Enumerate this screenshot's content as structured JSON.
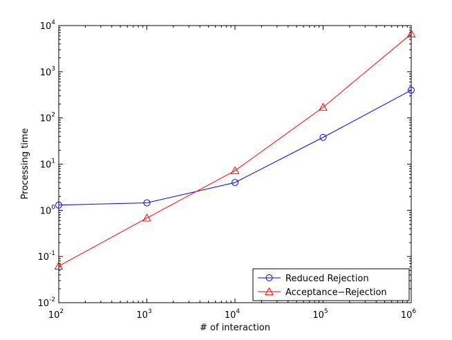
{
  "chart_data": {
    "type": "line",
    "xlabel": "# of interaction",
    "ylabel": "Processing time",
    "xscale": "log",
    "yscale": "log",
    "xlim": [
      100,
      1000000
    ],
    "ylim": [
      0.01,
      10000
    ],
    "x_ticks": [
      {
        "base": "10",
        "exp": "2",
        "value": 100
      },
      {
        "base": "10",
        "exp": "3",
        "value": 1000
      },
      {
        "base": "10",
        "exp": "4",
        "value": 10000
      },
      {
        "base": "10",
        "exp": "5",
        "value": 100000
      },
      {
        "base": "10",
        "exp": "6",
        "value": 1000000
      }
    ],
    "y_ticks": [
      {
        "base": "10",
        "exp": "-2",
        "value": 0.01
      },
      {
        "base": "10",
        "exp": "-1",
        "value": 0.1
      },
      {
        "base": "10",
        "exp": "0",
        "value": 1
      },
      {
        "base": "10",
        "exp": "1",
        "value": 10
      },
      {
        "base": "10",
        "exp": "2",
        "value": 100
      },
      {
        "base": "10",
        "exp": "3",
        "value": 1000
      },
      {
        "base": "10",
        "exp": "4",
        "value": 10000
      }
    ],
    "grid": false,
    "legend_position": "bottom-right",
    "x": [
      100,
      1000,
      10000,
      100000,
      1000000
    ],
    "series": [
      {
        "name": "Reduced Rejection",
        "marker": "circle",
        "color": "#0000ff",
        "values": [
          1.3,
          1.45,
          4.0,
          38,
          400
        ]
      },
      {
        "name": "Acceptance−Rejection",
        "marker": "triangle",
        "color": "#ff0000",
        "values": [
          0.062,
          0.68,
          7.2,
          170,
          6600
        ]
      }
    ]
  }
}
